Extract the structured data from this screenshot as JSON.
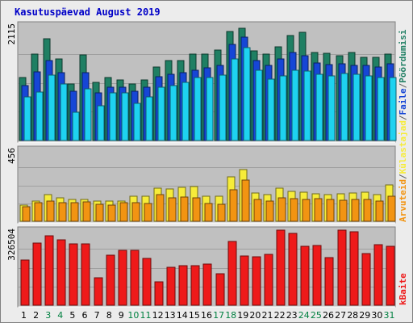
{
  "chart_data": {
    "type": "bar",
    "title": "Kasutuspäevad August 2019",
    "categories": [
      "1",
      "2",
      "3",
      "4",
      "5",
      "6",
      "7",
      "8",
      "9",
      "10",
      "11",
      "12",
      "13",
      "14",
      "15",
      "16",
      "17",
      "18",
      "19",
      "20",
      "21",
      "22",
      "23",
      "24",
      "25",
      "26",
      "27",
      "28",
      "29",
      "30",
      "31"
    ],
    "weekend_days": [
      "3",
      "4",
      "10",
      "11",
      "17",
      "18",
      "24",
      "25",
      "31"
    ],
    "panels": [
      {
        "id": "top",
        "ymax_label": "2115",
        "ymax": 2115,
        "series": [
          {
            "name": "Pöördumisi",
            "color": "#1f7f63",
            "values": [
              1150,
              1580,
              1860,
              1500,
              1040,
              1570,
              1060,
              1150,
              1110,
              1040,
              1110,
              1350,
              1460,
              1460,
              1580,
              1580,
              1660,
              1990,
              2050,
              1640,
              1580,
              1710,
              1920,
              1980,
              1610,
              1590,
              1550,
              1610,
              1530,
              1530,
              1580
            ]
          },
          {
            "name": "Faile",
            "color": "#1646d6",
            "values": [
              1000,
              1260,
              1460,
              1240,
              900,
              1240,
              880,
              980,
              980,
              900,
              980,
              1170,
              1220,
              1240,
              1290,
              1330,
              1370,
              1760,
              1900,
              1460,
              1370,
              1490,
              1610,
              1560,
              1420,
              1390,
              1410,
              1370,
              1380,
              1350,
              1410
            ]
          },
          {
            "name": "Külastajad",
            "color": "#1ed2f0",
            "values": [
              800,
              890,
              1200,
              1030,
              520,
              940,
              640,
              870,
              870,
              680,
              800,
              970,
              1000,
              1070,
              1150,
              1150,
              1200,
              1500,
              1700,
              1290,
              1130,
              1180,
              1290,
              1270,
              1220,
              1180,
              1230,
              1210,
              1180,
              1160,
              1150
            ]
          }
        ]
      },
      {
        "id": "middle",
        "ymax_label": "456",
        "ymax": 456,
        "series": [
          {
            "name": "Külastajad",
            "color": "#f6ec3a",
            "values": [
              100,
              130,
              170,
              150,
              140,
              140,
              130,
              130,
              130,
              160,
              160,
              210,
              205,
              215,
              220,
              160,
              160,
              280,
              330,
              180,
              170,
              210,
              190,
              185,
              175,
              170,
              175,
              180,
              185,
              170,
              230
            ]
          },
          {
            "name": "Arvuteid",
            "color": "#f29412",
            "values": [
              90,
              120,
              130,
              120,
              120,
              125,
              110,
              105,
              120,
              120,
              115,
              170,
              150,
              155,
              150,
              115,
              110,
              200,
              260,
              140,
              130,
              150,
              145,
              140,
              145,
              140,
              135,
              140,
              140,
              130,
              160
            ]
          }
        ]
      },
      {
        "id": "bottom",
        "ymax_label": "326504",
        "ymax": 326504,
        "series": [
          {
            "name": "kBaite",
            "color": "#ee1a1a",
            "values": [
              195000,
              270000,
              302000,
              283000,
              268000,
              268000,
              120000,
              217000,
              240000,
              237000,
              205000,
              102000,
              166000,
              172000,
              173000,
              180000,
              137000,
              278000,
              213000,
              212000,
              222000,
              326504,
              312000,
              255000,
              260000,
              208000,
              326504,
              320000,
              223000,
              265000,
              256000
            ]
          }
        ]
      }
    ],
    "legend_right": [
      {
        "text": "Arvuteid",
        "color": "#f29412"
      },
      {
        "text": "/",
        "color": "#606060"
      },
      {
        "text": "Külastajad",
        "color": "#f6ec3a"
      },
      {
        "text": "/",
        "color": "#606060"
      },
      {
        "text": "Faile",
        "color": "#1646d6"
      },
      {
        "text": "/",
        "color": "#606060"
      },
      {
        "text": "Pöördumisi",
        "color": "#1f7f63"
      }
    ],
    "legend_bottom": [
      {
        "text": "kBaite",
        "color": "#ee1a1a"
      }
    ],
    "colors": {
      "title": "#0000c8",
      "plot_bg": "#c0c0c0",
      "grid": "#a0a0a0",
      "weekday_label": "#000000",
      "weekend_label": "#008040"
    }
  }
}
